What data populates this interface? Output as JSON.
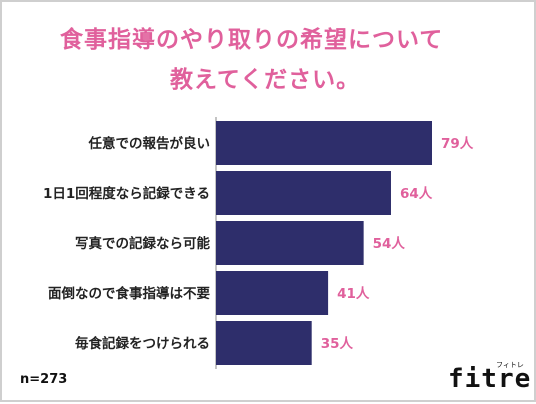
{
  "title_line1": "食事指導のやり取りの希望について",
  "title_line2": "教えてください。",
  "sample_note": "n=273",
  "logo": {
    "word": "fitre",
    "kana": "フィトレ"
  },
  "colors": {
    "bar": "#2e2e6b",
    "accent": "#e0609c"
  },
  "chart_data": {
    "type": "bar",
    "orientation": "horizontal",
    "categories": [
      "任意での報告が良い",
      "1日1回程度なら記録できる",
      "写真での記録なら可能",
      "面倒なので食事指導は不要",
      "毎食記録をつけられる"
    ],
    "values": [
      79,
      64,
      54,
      41,
      35
    ],
    "value_labels": [
      "79人",
      "64人",
      "54人",
      "41人",
      "35人"
    ],
    "xlim": [
      0,
      79
    ],
    "grid": false
  }
}
